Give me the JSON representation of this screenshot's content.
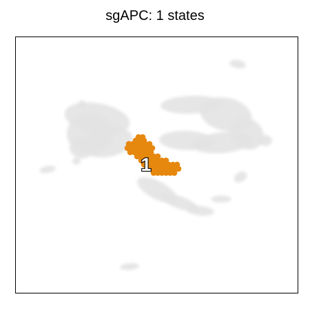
{
  "title": "sgAPC: 1 states",
  "chart_data": {
    "type": "scatter",
    "title": "sgAPC: 1 states",
    "xlabel": "",
    "ylabel": "",
    "grid": false,
    "legend": "none",
    "background_color": "#e3e3e3",
    "highlight_color": "#e6870e",
    "states": [
      {
        "label": "1",
        "x": 0.46,
        "y": 0.52
      }
    ]
  }
}
